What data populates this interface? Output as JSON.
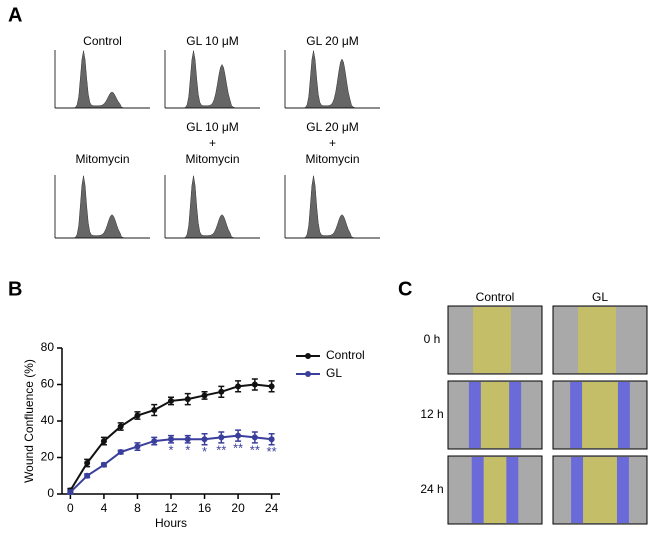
{
  "panel_labels": [
    "A",
    "B",
    "C"
  ],
  "histogram_titles": [
    [
      "Control"
    ],
    [
      "GL 10 μM"
    ],
    [
      "GL 20 μM"
    ],
    [
      "Mitomycin"
    ],
    [
      "GL 10 μM",
      "+",
      "Mitomycin"
    ],
    [
      "GL 20 μM",
      "+",
      "Mitomycin"
    ]
  ],
  "chart_data": {
    "type": "line",
    "x_label": "Hours",
    "y_label": "Wound Confluence (%)",
    "x": [
      0,
      2,
      4,
      6,
      8,
      10,
      12,
      14,
      16,
      18,
      20,
      22,
      24
    ],
    "series": [
      {
        "name": "Control",
        "color": "#111111",
        "values": [
          2,
          17,
          29,
          37,
          43,
          46,
          51,
          52,
          54,
          56,
          59,
          60,
          59
        ],
        "errors": [
          1,
          2,
          2,
          2,
          2,
          3,
          2,
          3,
          2,
          3,
          3,
          3,
          3
        ]
      },
      {
        "name": "GL",
        "color": "#3b3f9c",
        "values": [
          1,
          10,
          16,
          23,
          26,
          29,
          30,
          30,
          30,
          31,
          32,
          31,
          30
        ],
        "errors": [
          1,
          1,
          1,
          1,
          2,
          2,
          2,
          2,
          3,
          3,
          3,
          3,
          3
        ]
      }
    ],
    "annotations": [
      {
        "x": 12,
        "label": "*"
      },
      {
        "x": 14,
        "label": "*"
      },
      {
        "x": 16,
        "label": "*"
      },
      {
        "x": 18,
        "label": "**"
      },
      {
        "x": 20,
        "label": "**"
      },
      {
        "x": 22,
        "label": "**"
      },
      {
        "x": 24,
        "label": "**"
      }
    ],
    "xlim": [
      -1,
      25
    ],
    "ylim": [
      0,
      80
    ],
    "xticks": [
      0,
      4,
      8,
      12,
      16,
      20,
      24
    ],
    "yticks": [
      0,
      20,
      40,
      60,
      80
    ],
    "legend": "upper right"
  },
  "wound_assay": {
    "columns": [
      "Control",
      "GL"
    ],
    "rows": [
      "0 h",
      "12 h",
      "24 h"
    ]
  }
}
